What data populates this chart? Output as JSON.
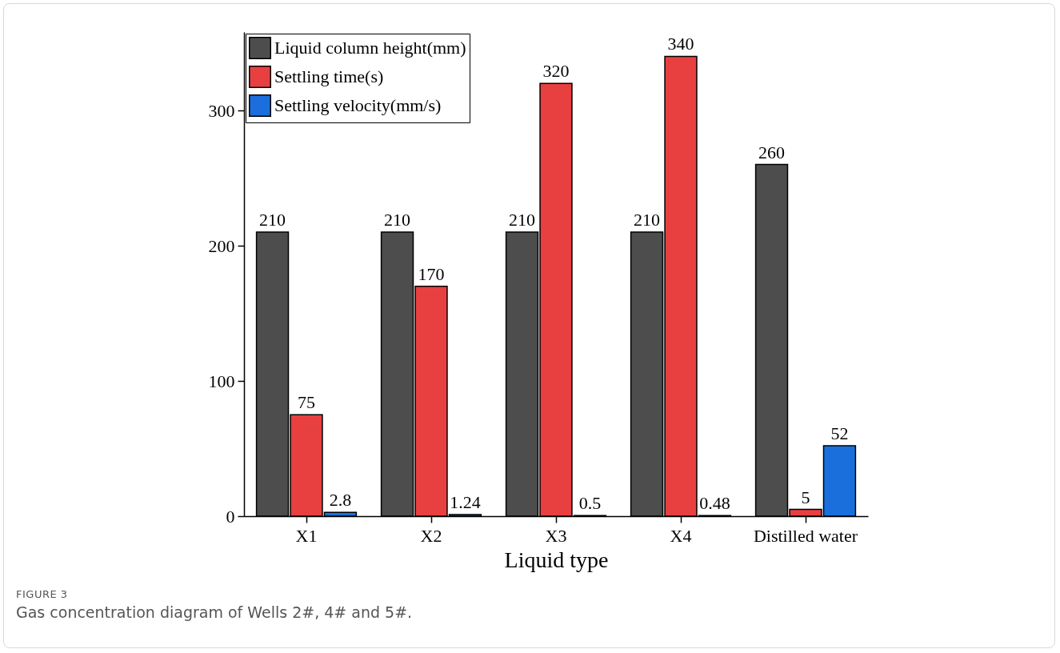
{
  "chart_data": {
    "type": "bar",
    "xlabel": "Liquid type",
    "categories": [
      "X1",
      "X2",
      "X3",
      "X4",
      "Distilled water"
    ],
    "series": [
      {
        "name": "Liquid column height(mm)",
        "color": "#4d4d4d",
        "values": [
          210,
          210,
          210,
          210,
          260
        ]
      },
      {
        "name": "Settling time(s)",
        "color": "#e84040",
        "values": [
          75,
          170,
          320,
          340,
          5
        ]
      },
      {
        "name": "Settling velocity(mm/s)",
        "color": "#1a6fdc",
        "values": [
          2.8,
          1.24,
          0.5,
          0.48,
          52
        ]
      }
    ],
    "ylim": [
      0,
      358
    ],
    "yticks": [
      0,
      100,
      200,
      300
    ],
    "grid": false,
    "legend": "top left",
    "data_labels": true,
    "annotations": [
      "FIGURE 3",
      "Gas concentration diagram of Wells 2#, 4# and 5#."
    ]
  }
}
